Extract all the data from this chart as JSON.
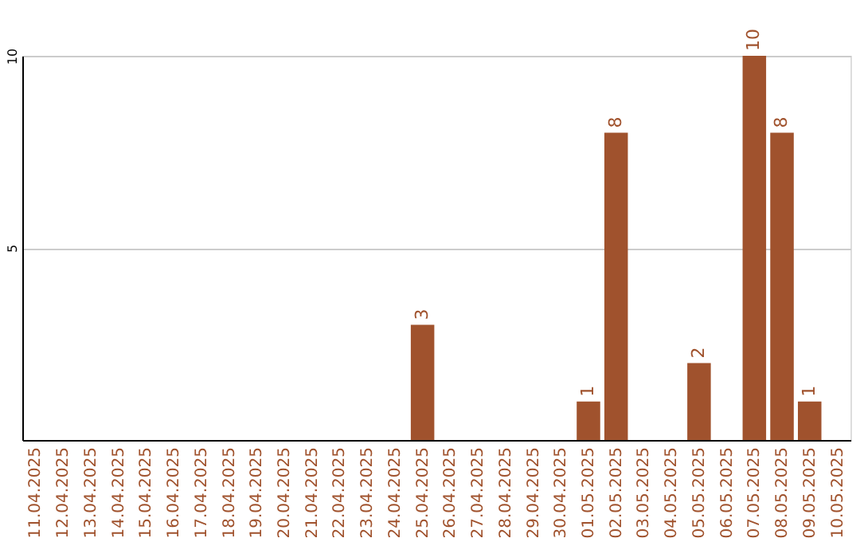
{
  "chart_data": {
    "type": "bar",
    "categories": [
      "11.04.2025",
      "12.04.2025",
      "13.04.2025",
      "14.04.2025",
      "15.04.2025",
      "16.04.2025",
      "17.04.2025",
      "18.04.2025",
      "19.04.2025",
      "20.04.2025",
      "21.04.2025",
      "22.04.2025",
      "23.04.2025",
      "24.04.2025",
      "25.04.2025",
      "26.04.2025",
      "27.04.2025",
      "28.04.2025",
      "29.04.2025",
      "30.04.2025",
      "01.05.2025",
      "02.05.2025",
      "03.05.2025",
      "04.05.2025",
      "05.05.2025",
      "06.05.2025",
      "07.05.2025",
      "08.05.2025",
      "09.05.2025",
      "10.05.2025"
    ],
    "values": [
      0,
      0,
      0,
      0,
      0,
      0,
      0,
      0,
      0,
      0,
      0,
      0,
      0,
      0,
      3,
      0,
      0,
      0,
      0,
      0,
      1,
      8,
      0,
      0,
      2,
      0,
      10,
      8,
      1,
      0
    ],
    "value_labels": [
      null,
      null,
      null,
      null,
      null,
      null,
      null,
      null,
      null,
      null,
      null,
      null,
      null,
      null,
      "3",
      null,
      null,
      null,
      null,
      null,
      "1",
      "8",
      null,
      null,
      "2",
      null,
      "10",
      "8",
      "1",
      null
    ],
    "color": "#a0522d",
    "ylim": [
      0,
      10
    ],
    "yticks": [
      5,
      10
    ],
    "grid": "y"
  }
}
